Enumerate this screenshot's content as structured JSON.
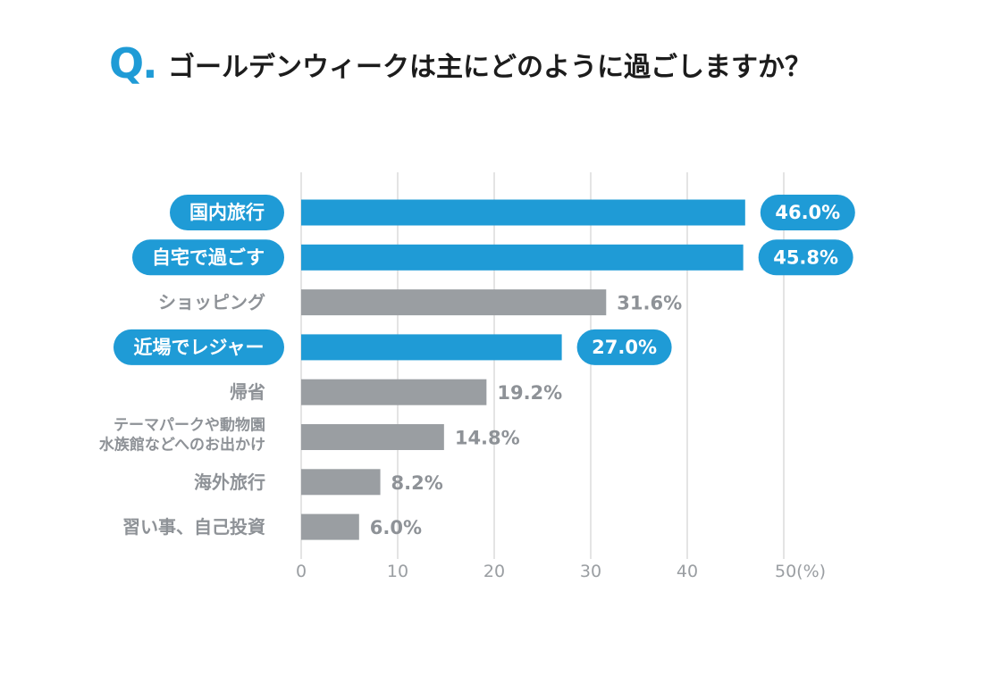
{
  "question": {
    "mark": "Q.",
    "text": "ゴールデンウィークは主にどのように過ごしますか？"
  },
  "colors": {
    "highlight": "#1f9bd6",
    "normal": "#9a9ea2",
    "grid": "#dcdcdc",
    "label_text_normal": "#8e9297",
    "pill_text": "#ffffff",
    "title_mark": "#1f9bd6"
  },
  "chart_data": {
    "type": "bar",
    "orientation": "horizontal",
    "title": "ゴールデンウィークは主にどのように過ごしますか？",
    "categories": [
      "国内旅行",
      "自宅で過ごす",
      "ショッピング",
      "近場でレジャー",
      "帰省",
      "テーマパークや動物園\n水族館などへのお出かけ",
      "海外旅行",
      "習い事、自己投資"
    ],
    "values": [
      46.0,
      45.8,
      31.6,
      27.0,
      19.2,
      14.8,
      8.2,
      6.0
    ],
    "value_labels": [
      "46.0%",
      "45.8%",
      "31.6%",
      "27.0%",
      "19.2%",
      "14.8%",
      "8.2%",
      "6.0%"
    ],
    "highlighted": [
      true,
      true,
      false,
      true,
      false,
      false,
      false,
      false
    ],
    "xlim": [
      0,
      50
    ],
    "xticks": [
      0,
      10,
      20,
      30,
      40,
      50
    ],
    "xtick_labels": [
      "0",
      "10",
      "20",
      "30",
      "40",
      "50(%)"
    ],
    "xlabel": "",
    "ylabel": "",
    "grid": true,
    "unit": "%"
  }
}
